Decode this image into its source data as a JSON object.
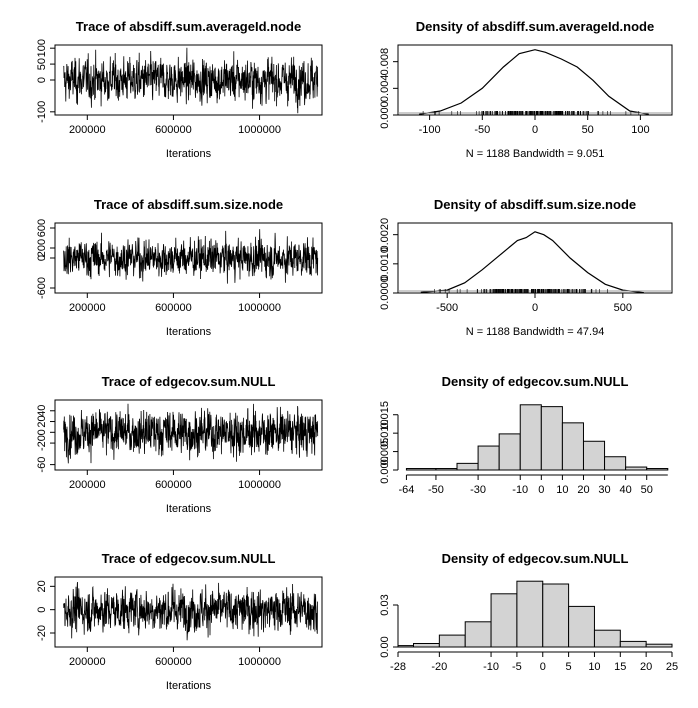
{
  "chart_data": [
    {
      "type": "line",
      "title": "Trace of absdiff.sum.averageId.node",
      "xlabel": "Iterations",
      "ylabel": "",
      "xlim": [
        50000,
        1290000
      ],
      "ylim": [
        -110,
        110
      ],
      "x_ticks": [
        "200000",
        "600000",
        "1000000"
      ],
      "y_ticks": [
        "-100",
        "0",
        "50",
        "100"
      ],
      "series": [
        {
          "values_summary": {
            "n": 1188,
            "mean": 0,
            "sd": 33
          }
        }
      ]
    },
    {
      "type": "area",
      "title": "Density of absdiff.sum.averageId.node",
      "footer": "N = 1188   Bandwidth = 9.051",
      "xlim": [
        -130,
        130
      ],
      "ylim": [
        0,
        0.0105
      ],
      "x_ticks": [
        "-100",
        "-50",
        "0",
        "50",
        "100"
      ],
      "y_ticks": [
        "0.000",
        "0.004",
        "0.008"
      ],
      "x": [
        -110,
        -90,
        -70,
        -50,
        -30,
        -15,
        0,
        10,
        25,
        40,
        55,
        70,
        90,
        108
      ],
      "y": [
        0.0001,
        0.0006,
        0.0018,
        0.004,
        0.0072,
        0.0092,
        0.0098,
        0.0094,
        0.0084,
        0.0072,
        0.0052,
        0.0028,
        0.0006,
        0.0001
      ]
    },
    {
      "type": "line",
      "title": "Trace of absdiff.sum.size.node",
      "xlabel": "Iterations",
      "ylabel": "",
      "xlim": [
        50000,
        1290000
      ],
      "ylim": [
        -700,
        700
      ],
      "x_ticks": [
        "200000",
        "600000",
        "1000000"
      ],
      "y_ticks": [
        "-600",
        "0",
        "200",
        "600"
      ],
      "series": [
        {
          "values_summary": {
            "n": 1188,
            "mean": 0,
            "sd": 180
          }
        }
      ]
    },
    {
      "type": "area",
      "title": "Density of absdiff.sum.size.node",
      "footer": "N = 1188   Bandwidth = 47.94",
      "xlim": [
        -780,
        780
      ],
      "ylim": [
        0,
        0.0024
      ],
      "x_ticks": [
        "-500",
        "0",
        "500"
      ],
      "y_ticks": [
        "0.0000",
        "0.0010",
        "0.0020"
      ],
      "x": [
        -650,
        -500,
        -400,
        -300,
        -200,
        -100,
        -50,
        0,
        50,
        100,
        200,
        300,
        400,
        500,
        620
      ],
      "y": [
        2e-05,
        0.0001,
        0.00035,
        0.0008,
        0.0013,
        0.0018,
        0.0019,
        0.0021,
        0.002,
        0.0018,
        0.0012,
        0.0007,
        0.0003,
        0.0001,
        1e-05
      ]
    },
    {
      "type": "line",
      "title": "Trace of edgecov.sum.NULL",
      "xlabel": "Iterations",
      "ylabel": "",
      "xlim": [
        50000,
        1290000
      ],
      "ylim": [
        -70,
        60
      ],
      "x_ticks": [
        "200000",
        "600000",
        "1000000"
      ],
      "y_ticks": [
        "-60",
        "-20",
        "0",
        "20",
        "40"
      ],
      "series": [
        {
          "values_summary": {
            "n": 1188,
            "mean": 0,
            "sd": 20
          }
        }
      ]
    },
    {
      "type": "bar",
      "title": "Density of edgecov.sum.NULL",
      "xlim": [
        -68,
        62
      ],
      "ylim": [
        0,
        0.019
      ],
      "x_ticks": [
        "-64",
        "-50",
        "-30",
        "-10",
        "0",
        "10",
        "20",
        "30",
        "40",
        "50"
      ],
      "y_ticks": [
        "0.000",
        "0.005",
        "0.010",
        "0.015"
      ],
      "bin_edges": [
        -64,
        -50,
        -40,
        -30,
        -20,
        -10,
        0,
        10,
        20,
        30,
        40,
        50,
        60
      ],
      "values": [
        0.0004,
        0.0004,
        0.0018,
        0.0065,
        0.0098,
        0.0177,
        0.0172,
        0.0128,
        0.0078,
        0.0036,
        0.0008,
        0.0004
      ]
    },
    {
      "type": "line",
      "title": "Trace of edgecov.sum.NULL",
      "xlabel": "Iterations",
      "ylabel": "",
      "xlim": [
        50000,
        1290000
      ],
      "ylim": [
        -32,
        28
      ],
      "x_ticks": [
        "200000",
        "600000",
        "1000000"
      ],
      "y_ticks": [
        "-20",
        "0",
        "20"
      ],
      "series": [
        {
          "values_summary": {
            "n": 1188,
            "mean": 0,
            "sd": 9
          }
        }
      ]
    },
    {
      "type": "bar",
      "title": "Density of edgecov.sum.NULL",
      "xlim": [
        -28,
        25
      ],
      "ylim": [
        0,
        0.05
      ],
      "x_ticks": [
        "-28",
        "-20",
        "-10",
        "-5",
        "0",
        "5",
        "10",
        "15",
        "20",
        "25"
      ],
      "y_ticks": [
        "0.00",
        "0.03"
      ],
      "bin_edges": [
        -28,
        -25,
        -20,
        -15,
        -10,
        -5,
        0,
        5,
        10,
        15,
        20,
        25
      ],
      "values": [
        0.001,
        0.0025,
        0.0085,
        0.018,
        0.038,
        0.047,
        0.045,
        0.029,
        0.012,
        0.004,
        0.002
      ]
    }
  ]
}
